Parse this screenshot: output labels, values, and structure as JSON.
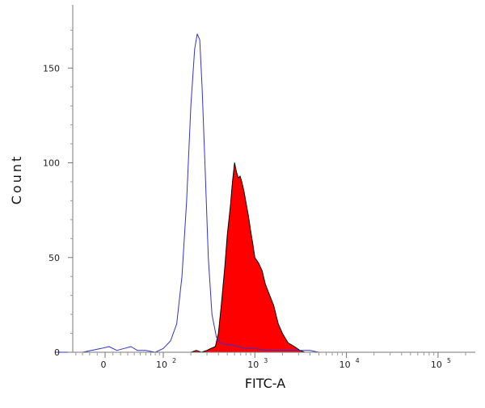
{
  "chart_data": {
    "type": "area",
    "xlabel": "FITC-A",
    "ylabel": "Count",
    "x_scale": "biexponential",
    "x_ticks": [
      {
        "label": "0",
        "exp": ""
      },
      {
        "label": "10",
        "exp": "2"
      },
      {
        "label": "10",
        "exp": "3"
      },
      {
        "label": "10",
        "exp": "4"
      },
      {
        "label": "10",
        "exp": "5"
      }
    ],
    "y_ticks": [
      0,
      50,
      100,
      150
    ],
    "ylim": [
      0,
      170
    ],
    "grid": false,
    "legend": "none",
    "series": [
      {
        "style": "filled",
        "color": "#ff0000",
        "outline": "#000000",
        "points": [
          [
            200,
            0
          ],
          [
            230,
            1
          ],
          [
            260,
            0
          ],
          [
            300,
            1
          ],
          [
            330,
            2
          ],
          [
            370,
            3
          ],
          [
            400,
            10
          ],
          [
            430,
            25
          ],
          [
            470,
            45
          ],
          [
            500,
            62
          ],
          [
            540,
            77
          ],
          [
            570,
            90
          ],
          [
            600,
            100
          ],
          [
            630,
            95
          ],
          [
            660,
            92
          ],
          [
            690,
            93
          ],
          [
            720,
            90
          ],
          [
            760,
            85
          ],
          [
            800,
            79
          ],
          [
            850,
            72
          ],
          [
            900,
            64
          ],
          [
            950,
            57
          ],
          [
            1000,
            50
          ],
          [
            1100,
            47
          ],
          [
            1200,
            43
          ],
          [
            1300,
            36
          ],
          [
            1450,
            30
          ],
          [
            1600,
            25
          ],
          [
            1800,
            15
          ],
          [
            2000,
            10
          ],
          [
            2300,
            5
          ],
          [
            2700,
            3
          ],
          [
            3100,
            1
          ],
          [
            3500,
            0
          ]
        ]
      },
      {
        "style": "line",
        "color": "#3333cc",
        "points": [
          [
            -80,
            0
          ],
          [
            -30,
            0
          ],
          [
            -5,
            2
          ],
          [
            5,
            3
          ],
          [
            15,
            1
          ],
          [
            25,
            2
          ],
          [
            35,
            3
          ],
          [
            45,
            1
          ],
          [
            60,
            1
          ],
          [
            80,
            0
          ],
          [
            100,
            2
          ],
          [
            120,
            6
          ],
          [
            140,
            15
          ],
          [
            160,
            40
          ],
          [
            180,
            80
          ],
          [
            200,
            130
          ],
          [
            220,
            160
          ],
          [
            235,
            168
          ],
          [
            250,
            165
          ],
          [
            265,
            140
          ],
          [
            285,
            100
          ],
          [
            310,
            50
          ],
          [
            340,
            20
          ],
          [
            380,
            8
          ],
          [
            420,
            5
          ],
          [
            480,
            4
          ],
          [
            550,
            4
          ],
          [
            650,
            3
          ],
          [
            800,
            2
          ],
          [
            1000,
            2
          ],
          [
            1300,
            1
          ],
          [
            2000,
            1
          ],
          [
            4000,
            1
          ],
          [
            5000,
            0
          ],
          [
            40000,
            0
          ],
          [
            200000,
            0
          ]
        ]
      }
    ]
  }
}
